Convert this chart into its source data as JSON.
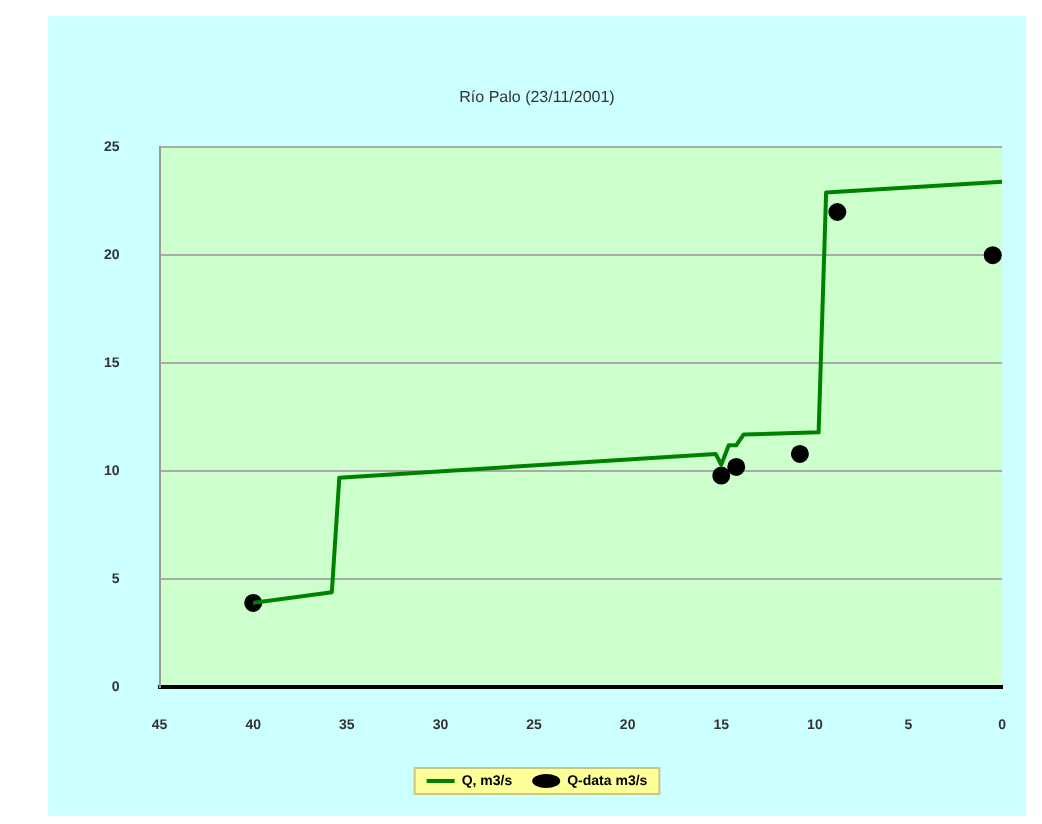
{
  "chart_data": {
    "type": "line",
    "title": "Río Palo (23/11/2001)",
    "xlim": [
      45,
      0
    ],
    "xticks": [
      45,
      40,
      35,
      30,
      25,
      20,
      15,
      10,
      5,
      0
    ],
    "ylim": [
      0,
      25
    ],
    "yticks": [
      0,
      5,
      10,
      15,
      20,
      25
    ],
    "grid": "y",
    "legend": "bottom",
    "series": [
      {
        "name": "Q, m3/s",
        "type": "line",
        "color": "#008000",
        "marker": "none",
        "x": [
          40,
          35.8,
          35.4,
          15.3,
          15.0,
          14.6,
          14.2,
          13.8,
          9.8,
          9.4,
          0
        ],
        "values": [
          3.9,
          4.4,
          9.7,
          10.8,
          10.3,
          11.2,
          11.2,
          11.7,
          11.8,
          22.9,
          23.4
        ]
      },
      {
        "name": "Q-data m3/s",
        "type": "scatter",
        "color": "#000000",
        "marker": "circle",
        "x": [
          40,
          15.0,
          14.2,
          10.8,
          8.8,
          0.5
        ],
        "values": [
          3.9,
          9.8,
          10.2,
          10.8,
          22.0,
          20.0
        ]
      }
    ]
  }
}
